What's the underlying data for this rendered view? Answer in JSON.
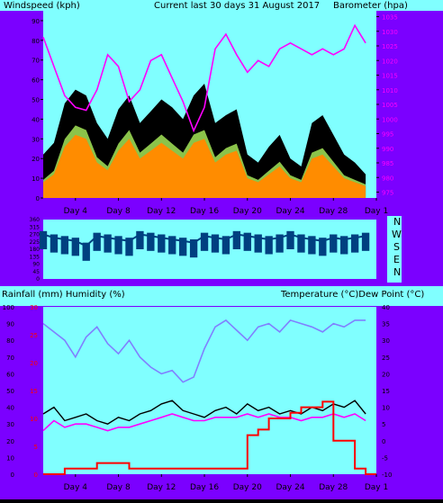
{
  "header": {
    "left": "Windspeed (kph)",
    "center": "Current last 30 days 31 August 2017",
    "right": "Barometer (hpa)"
  },
  "middle_header": {
    "left": "Rainfall (mm)  Humidity (%)",
    "right": "Temperature (°C)Dew Point (°C)"
  },
  "compass_labels": [
    "N",
    "W",
    "S",
    "E",
    "N"
  ],
  "colors": {
    "frame": "#7b00ff",
    "plot_bg": "#80ffff",
    "wind_gust": "#000000",
    "wind_avg": "#ff8c00",
    "wind_avg_light": "#8bc34a",
    "barometer": "#ff00ff",
    "direction": "#004080",
    "humidity": "#8080ff",
    "temperature": "#000000",
    "dewpoint": "#ff00ff",
    "rainfall": "#ff0000"
  },
  "chart_data": [
    {
      "type": "area",
      "x_ticks": [
        "Day 4",
        "Day 8",
        "Day 12",
        "Day 16",
        "Day 20",
        "Day 24",
        "Day 28",
        "Day 1"
      ],
      "left_ticks": [
        "0",
        "10",
        "20",
        "30",
        "40",
        "50",
        "60",
        "70",
        "80",
        "90"
      ],
      "left_ylim": [
        0,
        95
      ],
      "right_ticks": [
        "975",
        "980",
        "985",
        "990",
        "995",
        "1000",
        "1005",
        "1010",
        "1015",
        "1020",
        "1025",
        "1030",
        "1035"
      ],
      "right_ylim": [
        973,
        1037
      ],
      "days": [
        1,
        2,
        3,
        4,
        5,
        6,
        7,
        8,
        9,
        10,
        11,
        12,
        13,
        14,
        15,
        16,
        17,
        18,
        19,
        20,
        21,
        22,
        23,
        24,
        25,
        26,
        27,
        28,
        29,
        30,
        31
      ],
      "series": [
        {
          "name": "Windspeed (kph)",
          "role": "gust",
          "values": [
            22,
            28,
            48,
            55,
            52,
            38,
            30,
            45,
            52,
            38,
            44,
            50,
            46,
            40,
            52,
            58,
            38,
            42,
            45,
            22,
            18,
            26,
            32,
            20,
            16,
            38,
            42,
            32,
            22,
            18,
            12
          ]
        },
        {
          "name": "Windspeed (kph)",
          "role": "average",
          "values": [
            8,
            12,
            26,
            32,
            30,
            18,
            14,
            24,
            30,
            20,
            24,
            28,
            24,
            20,
            28,
            30,
            18,
            22,
            24,
            10,
            8,
            12,
            16,
            10,
            8,
            20,
            22,
            16,
            10,
            8,
            6
          ]
        },
        {
          "name": "Barometer (hpa)",
          "values": [
            1028,
            1018,
            1008,
            1004,
            1003,
            1010,
            1022,
            1018,
            1006,
            1010,
            1020,
            1022,
            1014,
            1006,
            996,
            1004,
            1024,
            1029,
            1022,
            1016,
            1020,
            1018,
            1024,
            1026,
            1024,
            1022,
            1024,
            1022,
            1024,
            1032,
            1026
          ]
        }
      ]
    },
    {
      "type": "line",
      "x_ticks": [
        "Day 4",
        "Day 8",
        "Day 12",
        "Day 16",
        "Day 20",
        "Day 24",
        "Day 28",
        "Day 1"
      ],
      "left_ticks": [
        "0",
        "45",
        "90",
        "135",
        "180",
        "225",
        "270",
        "315",
        "360"
      ],
      "ylim": [
        0,
        360
      ],
      "days": [
        1,
        2,
        3,
        4,
        5,
        6,
        7,
        8,
        9,
        10,
        11,
        12,
        13,
        14,
        15,
        16,
        17,
        18,
        19,
        20,
        21,
        22,
        23,
        24,
        25,
        26,
        27,
        28,
        29,
        30,
        31
      ],
      "series": [
        {
          "name": "Wind direction",
          "values": [
            270,
            250,
            240,
            230,
            200,
            260,
            250,
            240,
            230,
            270,
            260,
            250,
            240,
            230,
            220,
            260,
            250,
            240,
            270,
            260,
            250,
            240,
            250,
            270,
            250,
            240,
            230,
            250,
            240,
            250,
            260
          ]
        }
      ]
    },
    {
      "type": "line",
      "x_ticks": [
        "Day 4",
        "Day 8",
        "Day 12",
        "Day 16",
        "Day 20",
        "Day 24",
        "Day 28",
        "Day 1"
      ],
      "left_ticks": [
        "0",
        "10",
        "20",
        "30",
        "40",
        "50",
        "60",
        "70",
        "80",
        "90",
        "100"
      ],
      "left_ylim": [
        0,
        100
      ],
      "right_ticks": [
        "-10",
        "-5",
        "0",
        "5",
        "10",
        "15",
        "20",
        "25",
        "30",
        "35",
        "40"
      ],
      "right_ylim": [
        -10,
        40
      ],
      "rain_ticks": [
        "0",
        "5",
        "10",
        "15",
        "20",
        "25",
        "30"
      ],
      "rain_ylim": [
        0,
        30
      ],
      "days": [
        1,
        2,
        3,
        4,
        5,
        6,
        7,
        8,
        9,
        10,
        11,
        12,
        13,
        14,
        15,
        16,
        17,
        18,
        19,
        20,
        21,
        22,
        23,
        24,
        25,
        26,
        27,
        28,
        29,
        30,
        31
      ],
      "series": [
        {
          "name": "Humidity (%)",
          "values": [
            90,
            85,
            80,
            70,
            82,
            88,
            78,
            72,
            80,
            70,
            64,
            60,
            62,
            55,
            58,
            75,
            88,
            92,
            86,
            80,
            88,
            90,
            85,
            92,
            90,
            88,
            85,
            90,
            88,
            92,
            92
          ]
        },
        {
          "name": "Temperature (°C)",
          "values": [
            8,
            10,
            6,
            7,
            8,
            6,
            5,
            7,
            6,
            8,
            9,
            11,
            12,
            9,
            8,
            7,
            9,
            10,
            8,
            11,
            9,
            10,
            8,
            9,
            8,
            10,
            9,
            11,
            10,
            12,
            8
          ]
        },
        {
          "name": "Dew Point (°C)",
          "values": [
            3,
            6,
            4,
            5,
            5,
            4,
            3,
            4,
            4,
            5,
            6,
            7,
            8,
            7,
            6,
            6,
            7,
            7,
            7,
            8,
            7,
            8,
            7,
            7,
            6,
            7,
            7,
            8,
            7,
            8,
            6
          ]
        },
        {
          "name": "Rainfall (mm)",
          "values": [
            0,
            0,
            1,
            1,
            1,
            2,
            2,
            2,
            1,
            1,
            1,
            1,
            1,
            1,
            1,
            1,
            1,
            1,
            1,
            7,
            8,
            10,
            10,
            11,
            12,
            12,
            13,
            6,
            6,
            1,
            0
          ]
        }
      ]
    }
  ]
}
